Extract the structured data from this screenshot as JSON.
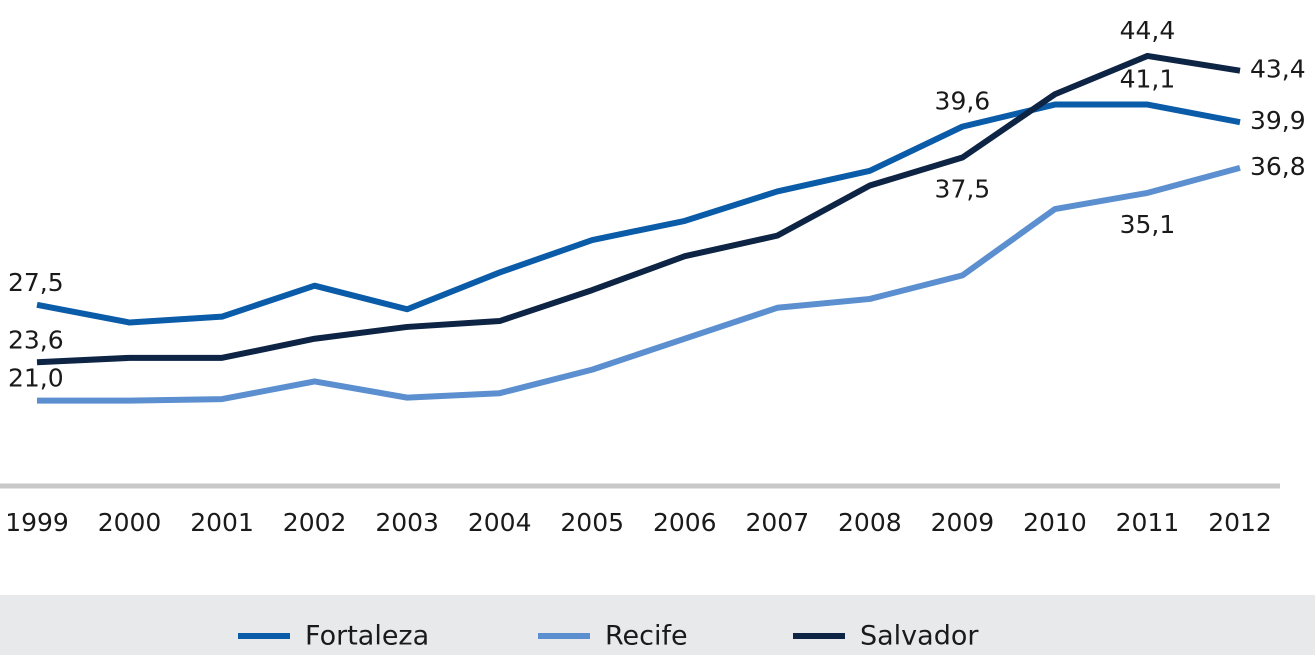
{
  "chart_data": {
    "type": "line",
    "categories": [
      "1999",
      "2000",
      "2001",
      "2002",
      "2003",
      "2004",
      "2005",
      "2006",
      "2007",
      "2008",
      "2009",
      "2010",
      "2011",
      "2012"
    ],
    "ylim": [
      15.2,
      46.5
    ],
    "legend": "bottom",
    "series": [
      {
        "name": "Fortaleza",
        "color": "#0a5ba8",
        "values": [
          27.5,
          26.3,
          26.7,
          28.8,
          27.2,
          29.7,
          31.9,
          33.2,
          35.2,
          36.6,
          39.6,
          41.1,
          41.1,
          39.9
        ],
        "value_labels": [
          "27,5",
          null,
          null,
          null,
          null,
          null,
          null,
          null,
          null,
          null,
          "39,6",
          null,
          "41,1",
          "39,9"
        ]
      },
      {
        "name": "Recife",
        "color": "#5b8fcf",
        "values": [
          21.0,
          21.0,
          21.1,
          22.3,
          21.2,
          21.5,
          23.1,
          25.2,
          27.3,
          27.9,
          29.5,
          34.0,
          35.1,
          36.8
        ],
        "value_labels": [
          "21,0",
          null,
          null,
          null,
          null,
          null,
          null,
          null,
          null,
          null,
          null,
          null,
          "35,1",
          "36,8"
        ]
      },
      {
        "name": "Salvador",
        "color": "#0d2444",
        "values": [
          23.6,
          23.9,
          23.9,
          25.2,
          26.0,
          26.4,
          28.5,
          30.8,
          32.2,
          35.6,
          37.5,
          41.8,
          44.4,
          43.4
        ],
        "value_labels": [
          "23,6",
          null,
          null,
          null,
          null,
          null,
          null,
          null,
          null,
          null,
          "37,5",
          null,
          "44,4",
          "43,4"
        ]
      }
    ]
  }
}
